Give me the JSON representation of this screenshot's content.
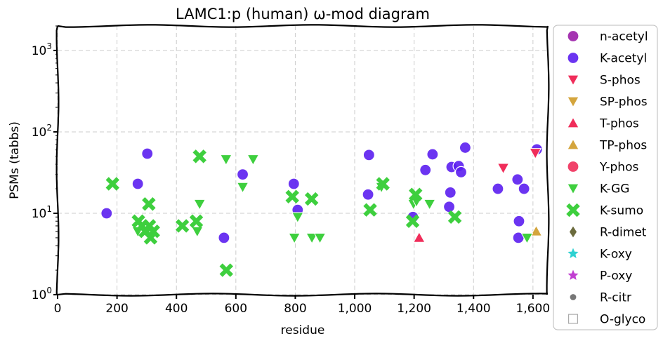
{
  "chart_data": {
    "type": "scatter",
    "title": "LAMC1:p (human) ω-mod diagram",
    "xlabel": "residue",
    "ylabel": "PSMs (tabbs)",
    "xlim": [
      0,
      1650
    ],
    "ylim": [
      1,
      2000
    ],
    "yscale": "log",
    "x_ticks": [
      "0",
      "200",
      "400",
      "600",
      "800",
      "1,000",
      "1,200",
      "1,400",
      "1,600"
    ],
    "x_tick_values": [
      0,
      200,
      400,
      600,
      800,
      1000,
      1200,
      1400,
      1600
    ],
    "y_ticks": [
      {
        "value": 1,
        "base": "10",
        "exp": "0"
      },
      {
        "value": 10,
        "base": "10",
        "exp": "1"
      },
      {
        "value": 100,
        "base": "10",
        "exp": "2"
      },
      {
        "value": 1000,
        "base": "10",
        "exp": "3"
      }
    ],
    "grid": true,
    "legend_position": "right",
    "series": [
      {
        "name": "n-acetyl",
        "marker": "circle",
        "color": "#9b1fa8",
        "points": []
      },
      {
        "name": "K-acetyl",
        "marker": "circle",
        "color": "#5b1ef0",
        "points": [
          [
            165,
            10
          ],
          [
            270,
            23
          ],
          [
            302,
            54
          ],
          [
            623,
            30
          ],
          [
            560,
            5
          ],
          [
            795,
            23
          ],
          [
            808,
            11
          ],
          [
            1045,
            17
          ],
          [
            1048,
            52
          ],
          [
            1196,
            9
          ],
          [
            1238,
            34
          ],
          [
            1262,
            53
          ],
          [
            1318,
            12
          ],
          [
            1322,
            18
          ],
          [
            1326,
            37
          ],
          [
            1350,
            38
          ],
          [
            1358,
            32
          ],
          [
            1372,
            64
          ],
          [
            1482,
            20
          ],
          [
            1548,
            26
          ],
          [
            1553,
            8
          ],
          [
            1551,
            5
          ],
          [
            1570,
            20
          ],
          [
            1613,
            61
          ]
        ]
      },
      {
        "name": "S-phos",
        "marker": "triangle-down",
        "color": "#f02d5a",
        "points": [
          [
            1500,
            36
          ],
          [
            1608,
            55
          ]
        ]
      },
      {
        "name": "SP-phos",
        "marker": "triangle-down",
        "color": "#d4a53d",
        "points": []
      },
      {
        "name": "T-phos",
        "marker": "triangle-up",
        "color": "#f02d5a",
        "points": [
          [
            1217,
            5
          ]
        ]
      },
      {
        "name": "TP-phos",
        "marker": "triangle-up",
        "color": "#d4a53d",
        "points": [
          [
            1611,
            6
          ]
        ]
      },
      {
        "name": "Y-phos",
        "marker": "circle",
        "color": "#f02d5a",
        "points": []
      },
      {
        "name": "K-GG",
        "marker": "triangle-down",
        "color": "#3ecf3e",
        "points": [
          [
            270,
            6
          ],
          [
            300,
            6
          ],
          [
            470,
            6
          ],
          [
            478,
            13
          ],
          [
            567,
            46
          ],
          [
            623,
            21
          ],
          [
            658,
            46
          ],
          [
            797,
            5
          ],
          [
            808,
            9
          ],
          [
            856,
            5
          ],
          [
            883,
            5
          ],
          [
            1090,
            21
          ],
          [
            1198,
            13
          ],
          [
            1208,
            14
          ],
          [
            1252,
            13
          ],
          [
            1580,
            5
          ]
        ]
      },
      {
        "name": "K-sumo",
        "marker": "x",
        "color": "#3ecf3e",
        "points": [
          [
            185,
            23
          ],
          [
            272,
            8
          ],
          [
            284,
            7
          ],
          [
            295,
            6
          ],
          [
            307,
            13
          ],
          [
            309,
            7
          ],
          [
            313,
            5
          ],
          [
            322,
            6
          ],
          [
            420,
            7
          ],
          [
            467,
            8
          ],
          [
            478,
            50
          ],
          [
            568,
            2
          ],
          [
            790,
            16
          ],
          [
            855,
            15
          ],
          [
            1052,
            11
          ],
          [
            1095,
            23
          ],
          [
            1195,
            8
          ],
          [
            1205,
            17
          ],
          [
            1337,
            9
          ]
        ]
      },
      {
        "name": "R-dimet",
        "marker": "diamond",
        "color": "#6b6b3d",
        "points": []
      },
      {
        "name": "K-oxy",
        "marker": "star",
        "color": "#2ed1d1",
        "points": []
      },
      {
        "name": "P-oxy",
        "marker": "star",
        "color": "#c13fd1",
        "points": []
      },
      {
        "name": "R-citr",
        "marker": "dot",
        "color": "#777777",
        "points": []
      },
      {
        "name": "O-glyco",
        "marker": "square-open",
        "color": "#aaaaaa",
        "points": []
      }
    ]
  }
}
